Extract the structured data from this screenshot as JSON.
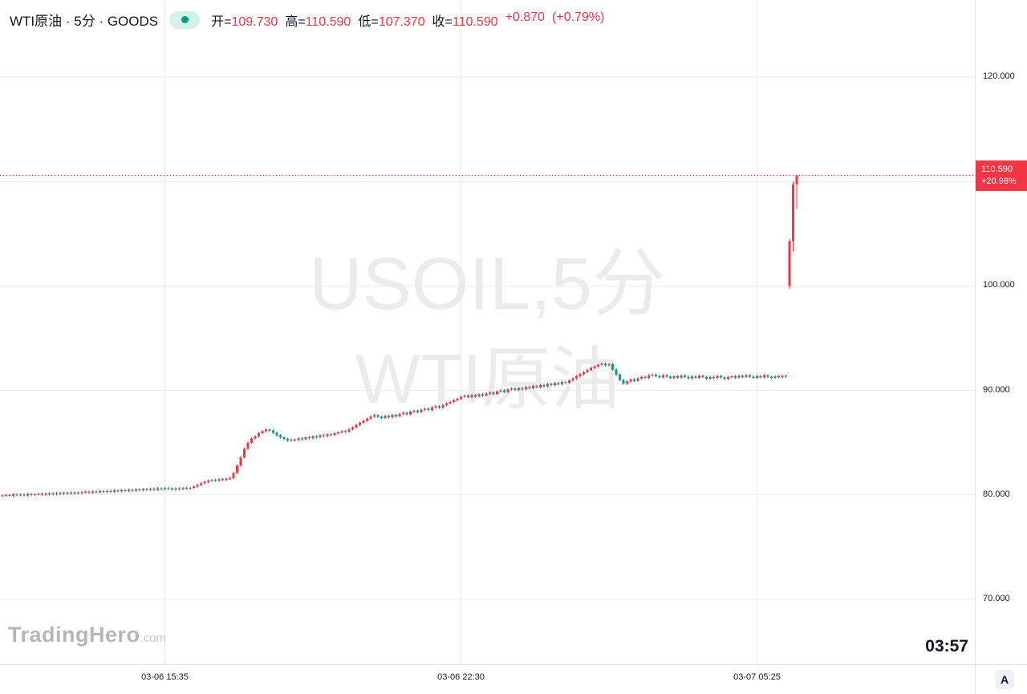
{
  "header": {
    "symbol_title": "WTI原油 · 5分 · GOODS",
    "source_icon": "teal-dot-pill",
    "ohlc": {
      "open_label": "开=",
      "open_value": "109.730",
      "high_label": "高=",
      "high_value": "110.590",
      "low_label": "低=",
      "low_value": "107.370",
      "close_label": "收=",
      "close_value": "110.590",
      "change": "+0.870",
      "change_pct": "(+0.79%)"
    }
  },
  "watermark": {
    "line1": "USOIL,5分",
    "line2": "WTI原油"
  },
  "logo": {
    "brand": "TradingHero",
    "tld": ".com"
  },
  "countdown": "03:57",
  "corner_button": "A",
  "price_axis": {
    "labels": [
      {
        "text": "120.000",
        "price": 120
      },
      {
        "text": "110.000",
        "price": 110
      },
      {
        "text": "100.000",
        "price": 100
      },
      {
        "text": "90.000",
        "price": 90
      },
      {
        "text": "80.000",
        "price": 80
      },
      {
        "text": "70.000",
        "price": 70
      }
    ],
    "last_price_label": "110.590",
    "last_change_pct": "+20.98%"
  },
  "time_axis": {
    "labels": [
      {
        "text": "03-06 15:35",
        "candle_index": 45
      },
      {
        "text": "03-06 22:30",
        "candle_index": 127
      },
      {
        "text": "03-07 05:25",
        "candle_index": 209
      }
    ]
  },
  "colors": {
    "up": "#F23645",
    "down": "#089981",
    "grid": "#e9ebee",
    "text": "#131722",
    "badge_bg": "#F23645"
  },
  "chart_data": {
    "type": "candlestick",
    "title": "WTI原油 (USOIL) · 5分 · GOODS",
    "interval": "5min",
    "legend_ohlc_last_bar": {
      "open": 109.73,
      "high": 110.59,
      "low": 107.37,
      "close": 110.59,
      "change": 0.87,
      "change_pct_bar": 0.79
    },
    "last": {
      "price": 110.59,
      "change_pct": "+20.98%"
    },
    "y_axis": {
      "min": 67.0,
      "max": 122.4,
      "gridlines": [
        70,
        80,
        90,
        100,
        110,
        120
      ],
      "tick_format": "x.000"
    },
    "x_axis": {
      "tick_labels": [
        "03-06 15:35",
        "03-06 22:30",
        "03-07 05:25"
      ]
    },
    "up_color": "#F23645",
    "down_color": "#089981",
    "wick_extra": 0.12,
    "candles": [
      79.95,
      80.0,
      79.92,
      80.05,
      79.98,
      80.02,
      79.95,
      80.08,
      80.0,
      80.05,
      80.1,
      80.02,
      80.12,
      80.05,
      80.15,
      80.08,
      80.18,
      80.1,
      80.2,
      80.12,
      80.22,
      80.15,
      80.25,
      80.3,
      80.2,
      80.32,
      80.25,
      80.35,
      80.28,
      80.38,
      80.3,
      80.42,
      80.35,
      80.45,
      80.38,
      80.48,
      80.4,
      80.52,
      80.45,
      80.55,
      80.48,
      80.58,
      80.5,
      80.62,
      80.55,
      80.65,
      80.58,
      80.52,
      80.62,
      80.55,
      80.65,
      80.6,
      80.68,
      80.8,
      80.95,
      81.1,
      81.25,
      81.35,
      81.42,
      81.35,
      81.5,
      81.42,
      81.55,
      81.6,
      82.1,
      82.8,
      83.6,
      84.4,
      85.0,
      85.4,
      85.6,
      85.9,
      86.1,
      86.25,
      86.15,
      85.95,
      85.7,
      85.5,
      85.35,
      85.2,
      85.3,
      85.25,
      85.4,
      85.32,
      85.5,
      85.42,
      85.6,
      85.52,
      85.7,
      85.62,
      85.8,
      85.72,
      85.9,
      85.98,
      86.1,
      86.05,
      86.28,
      86.45,
      86.7,
      86.9,
      87.1,
      87.3,
      87.5,
      87.62,
      87.48,
      87.35,
      87.55,
      87.42,
      87.65,
      87.52,
      87.75,
      87.85,
      87.7,
      87.95,
      88.05,
      87.92,
      88.15,
      88.25,
      88.12,
      88.35,
      88.48,
      88.35,
      88.6,
      88.75,
      88.9,
      89.05,
      89.2,
      89.38,
      89.5,
      89.35,
      89.55,
      89.42,
      89.62,
      89.5,
      89.7,
      89.8,
      89.65,
      89.9,
      90.0,
      89.85,
      90.1,
      90.18,
      90.05,
      90.2,
      90.1,
      90.32,
      90.2,
      90.42,
      90.3,
      90.52,
      90.4,
      90.62,
      90.5,
      90.7,
      90.6,
      90.8,
      90.72,
      90.95,
      91.15,
      91.35,
      91.55,
      91.75,
      91.95,
      92.15,
      92.3,
      92.45,
      92.55,
      92.4,
      92.5,
      92.0,
      91.5,
      91.0,
      90.65,
      90.85,
      91.05,
      90.92,
      91.15,
      91.3,
      91.2,
      91.42,
      91.5,
      91.38,
      91.25,
      91.45,
      91.32,
      91.18,
      91.35,
      91.22,
      91.42,
      91.3,
      91.15,
      91.33,
      91.2,
      91.4,
      91.28,
      91.12,
      91.3,
      91.18,
      91.38,
      91.25,
      91.1,
      91.28,
      91.35,
      91.22,
      91.4,
      91.3,
      91.45,
      91.32,
      91.2,
      91.38,
      91.26,
      91.44,
      91.3,
      91.2,
      91.35,
      91.25,
      91.4,
      91.32,
      [
        100.0,
        104.5,
        99.7,
        104.3
      ],
      [
        104.3,
        110.0,
        103.3,
        109.7
      ],
      [
        109.73,
        110.59,
        107.37,
        110.59
      ]
    ]
  }
}
